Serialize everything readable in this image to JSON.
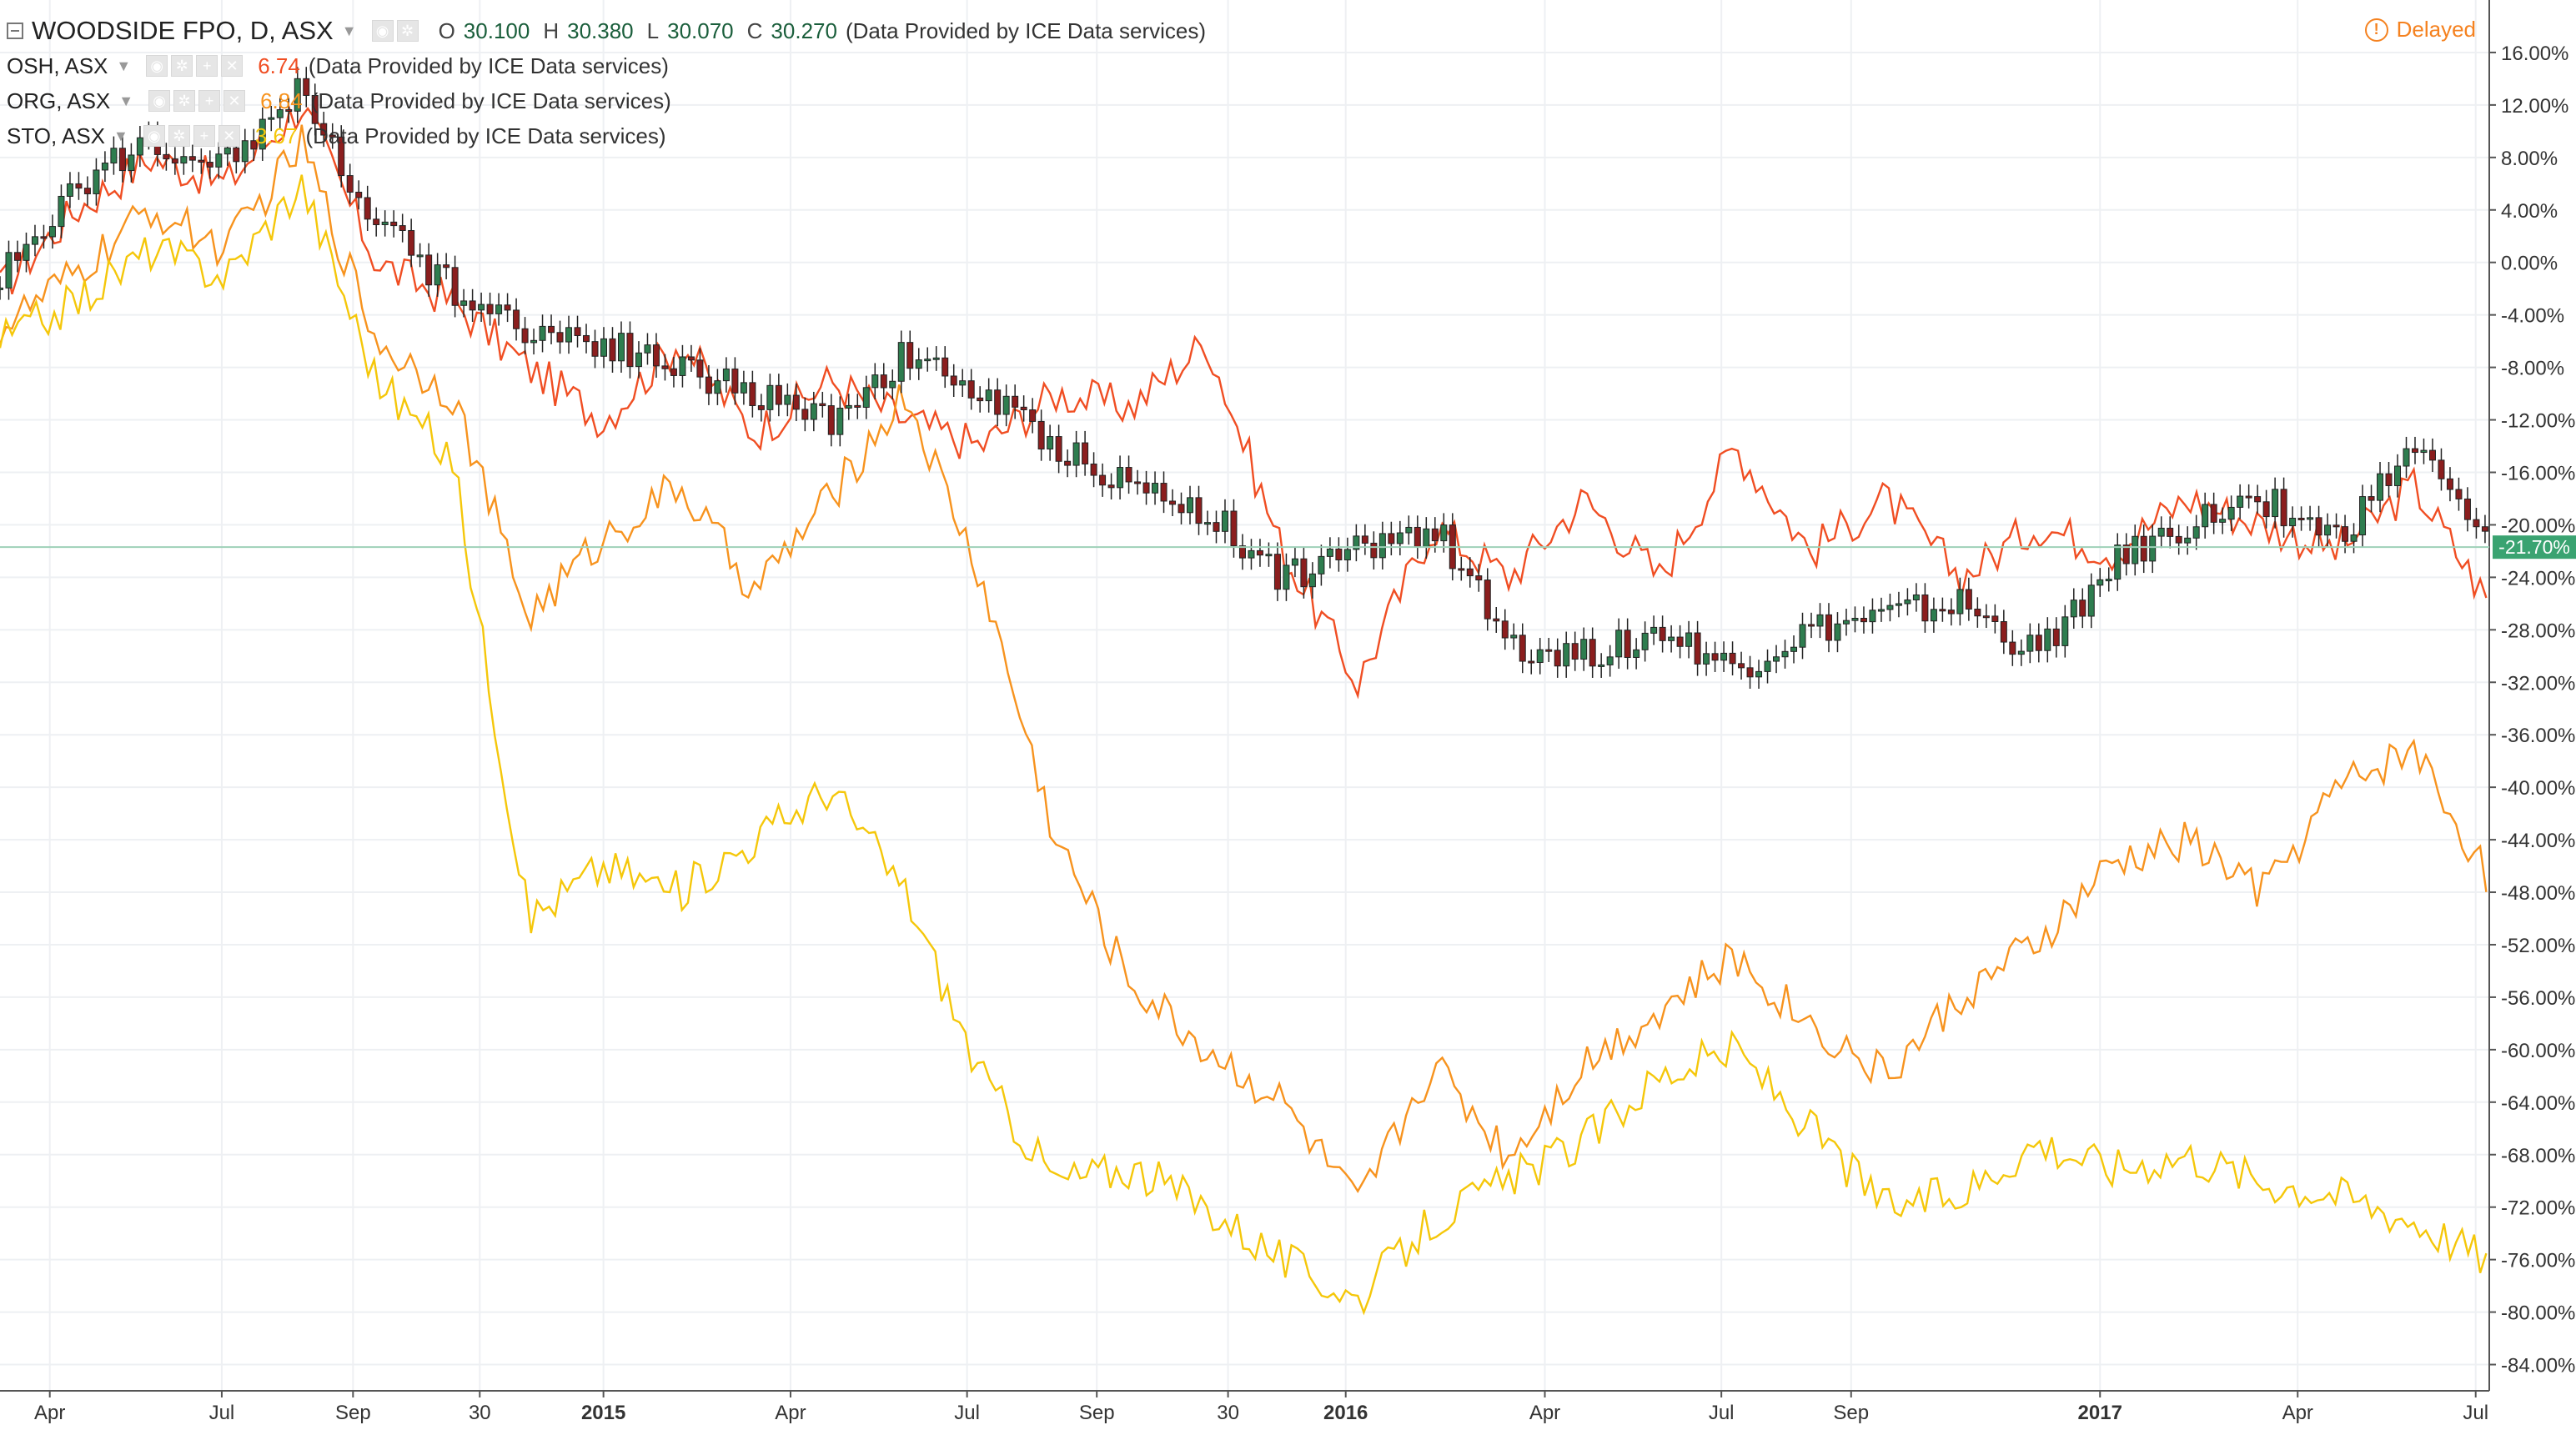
{
  "header": {
    "title": "WOODSIDE FPO, D, ASX",
    "ohlc": [
      {
        "label": "O",
        "value": "30.100"
      },
      {
        "label": "H",
        "value": "30.380"
      },
      {
        "label": "L",
        "value": "30.070"
      },
      {
        "label": "C",
        "value": "30.270"
      }
    ],
    "provider": "(Data Provided by ICE Data services)",
    "delayed_label": "Delayed"
  },
  "compare_rows": [
    {
      "symbol": "OSH, ASX",
      "value": "6.74",
      "color": "#f04e23",
      "provider": "(Data Provided by ICE Data services)"
    },
    {
      "symbol": "ORG, ASX",
      "value": "6.84",
      "color": "#f7931e",
      "provider": "(Data Provided by ICE Data services)"
    },
    {
      "symbol": "STO, ASX",
      "value": "3.67",
      "color": "#f5c70a",
      "provider": "(Data Provided by ICE Data services)"
    }
  ],
  "colors": {
    "up_candle": "#2e7d4f",
    "down_candle": "#8b1e1e",
    "osh": "#f04e23",
    "org": "#f7931e",
    "sto": "#f5c70a",
    "last_price_badge": "#3aa371",
    "grid": "#eef0f3"
  },
  "chart_data": {
    "type": "line",
    "title": "WOODSIDE FPO, D, ASX",
    "y_axis": {
      "scale": "percent",
      "range": [
        -86,
        18
      ],
      "side": "right"
    },
    "y_ticks": [
      "16.00%",
      "12.00%",
      "8.00%",
      "4.00%",
      "0.00%",
      "-4.00%",
      "-8.00%",
      "-12.00%",
      "-16.00%",
      "-20.00%",
      "-24.00%",
      "-28.00%",
      "-32.00%",
      "-36.00%",
      "-40.00%",
      "-44.00%",
      "-48.00%",
      "-52.00%",
      "-56.00%",
      "-60.00%",
      "-64.00%",
      "-68.00%",
      "-72.00%",
      "-76.00%",
      "-80.00%",
      "-84.00%"
    ],
    "x_ticks": [
      {
        "label": "Apr",
        "bold": false
      },
      {
        "label": "Jul",
        "bold": false
      },
      {
        "label": "Sep",
        "bold": false
      },
      {
        "label": "30",
        "bold": false
      },
      {
        "label": "2015",
        "bold": true
      },
      {
        "label": "Apr",
        "bold": false
      },
      {
        "label": "Jul",
        "bold": false
      },
      {
        "label": "Sep",
        "bold": false
      },
      {
        "label": "30",
        "bold": false
      },
      {
        "label": "2016",
        "bold": true
      },
      {
        "label": "Apr",
        "bold": false
      },
      {
        "label": "Jul",
        "bold": false
      },
      {
        "label": "Sep",
        "bold": false
      },
      {
        "label": "2017",
        "bold": true
      },
      {
        "label": "Apr",
        "bold": false
      },
      {
        "label": "Jul",
        "bold": false
      }
    ],
    "x_tick_positions": [
      0.033,
      0.147,
      0.234,
      0.318,
      0.4,
      0.524,
      0.641,
      0.727,
      0.814,
      0.892,
      1.024,
      1.141,
      1.227,
      1.392,
      1.523,
      1.641
    ],
    "last_value_label": "-21.70%",
    "last_value": -21.7,
    "grid": true,
    "candles": {
      "name": "WOODSIDE FPO",
      "t": [
        0.0,
        0.05,
        0.1,
        0.15,
        0.2,
        0.25,
        0.3,
        0.35,
        0.4,
        0.45,
        0.5,
        0.55,
        0.6,
        0.65,
        0.7,
        0.75,
        0.8,
        0.85,
        0.9,
        0.95,
        1.0,
        1.05,
        1.1,
        1.15,
        1.2,
        1.25,
        1.3,
        1.35,
        1.4,
        1.45,
        1.5,
        1.55,
        1.6,
        1.65
      ],
      "close": [
        -1,
        6,
        9,
        8,
        13,
        3,
        -2,
        -5,
        -6,
        -8,
        -10,
        -12,
        -7,
        -10,
        -14,
        -17,
        -19,
        -24,
        -22,
        -20,
        -29,
        -30,
        -28,
        -31,
        -28,
        -27,
        -26,
        -30,
        -23,
        -20,
        -18,
        -21,
        -14,
        -22
      ]
    },
    "series": [
      {
        "name": "OSH, ASX",
        "color_key": "osh",
        "t": [
          0.0,
          0.05,
          0.1,
          0.15,
          0.2,
          0.25,
          0.3,
          0.35,
          0.4,
          0.45,
          0.5,
          0.55,
          0.6,
          0.65,
          0.7,
          0.75,
          0.8,
          0.85,
          0.9,
          0.95,
          1.0,
          1.05,
          1.1,
          1.15,
          1.2,
          1.25,
          1.3,
          1.35,
          1.4,
          1.45,
          1.5,
          1.55,
          1.6,
          1.65
        ],
        "values": [
          -2,
          4,
          8,
          6,
          12,
          0,
          -3,
          -8,
          -12,
          -6,
          -13,
          -9,
          -12,
          -14,
          -10,
          -11,
          -6,
          -22,
          -32,
          -20,
          -24,
          -18,
          -24,
          -14,
          -22,
          -18,
          -24,
          -20,
          -22,
          -18,
          -20,
          -22,
          -17,
          -26
        ]
      },
      {
        "name": "ORG, ASX",
        "color_key": "org",
        "t": [
          0.0,
          0.05,
          0.1,
          0.15,
          0.2,
          0.25,
          0.3,
          0.35,
          0.4,
          0.45,
          0.5,
          0.55,
          0.6,
          0.65,
          0.7,
          0.75,
          0.8,
          0.85,
          0.9,
          0.95,
          1.0,
          1.05,
          1.1,
          1.15,
          1.2,
          1.25,
          1.3,
          1.35,
          1.4,
          1.45,
          1.5,
          1.55,
          1.6,
          1.65
        ],
        "values": [
          -5,
          -1,
          4,
          1,
          9,
          -6,
          -10,
          -27,
          -21,
          -17,
          -25,
          -18,
          -10,
          -24,
          -44,
          -55,
          -60,
          -64,
          -72,
          -61,
          -68,
          -61,
          -57,
          -53,
          -58,
          -62,
          -56,
          -52,
          -46,
          -44,
          -48,
          -40,
          -37,
          -47
        ]
      },
      {
        "name": "STO, ASX",
        "color_key": "sto",
        "t": [
          0.0,
          0.05,
          0.1,
          0.15,
          0.2,
          0.25,
          0.3,
          0.35,
          0.4,
          0.45,
          0.5,
          0.55,
          0.6,
          0.65,
          0.7,
          0.75,
          0.8,
          0.85,
          0.9,
          0.95,
          1.0,
          1.05,
          1.1,
          1.15,
          1.2,
          1.25,
          1.3,
          1.35,
          1.4,
          1.45,
          1.5,
          1.55,
          1.6,
          1.65
        ],
        "values": [
          -6,
          -3,
          1,
          -1,
          6,
          -9,
          -15,
          -50,
          -46,
          -48,
          -44,
          -40,
          -48,
          -62,
          -70,
          -69,
          -72,
          -76,
          -79,
          -73,
          -70,
          -67,
          -62,
          -60,
          -66,
          -72,
          -71,
          -67,
          -69,
          -68,
          -70,
          -71,
          -73,
          -76
        ]
      }
    ]
  }
}
